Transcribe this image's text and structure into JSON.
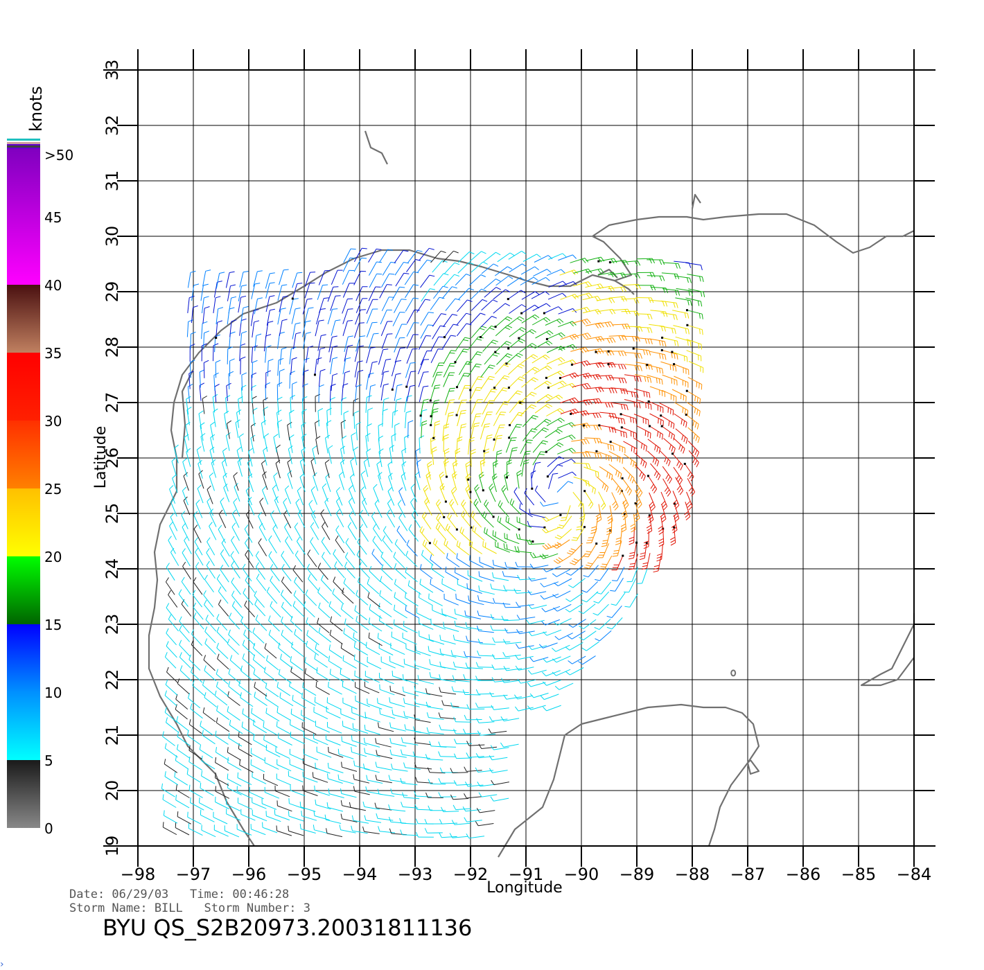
{
  "map": {
    "region": "Gulf of Mexico",
    "x_axis_label": "Longitude",
    "y_axis_label": "Latitude",
    "lon_range": [
      -98,
      -84
    ],
    "lat_range": [
      19,
      33
    ],
    "lon_ticks": [
      "−98",
      "−97",
      "−96",
      "−95",
      "−94",
      "−93",
      "−92",
      "−91",
      "−90",
      "−89",
      "−88",
      "−87",
      "−86",
      "−85",
      "−84"
    ],
    "lat_ticks": [
      "19",
      "20",
      "21",
      "22",
      "23",
      "24",
      "25",
      "26",
      "27",
      "28",
      "29",
      "30",
      "31",
      "32",
      "33"
    ],
    "grid": true,
    "coastline_color": "#707070"
  },
  "colorbar": {
    "unit": "knots",
    "top_label": ">50",
    "labels": [
      "45",
      "40",
      "35",
      "30",
      "25",
      "20",
      "15",
      "10",
      "5",
      "0"
    ],
    "bands": [
      {
        "from": 0,
        "to": 5,
        "colors": [
          "#888888",
          "#1a1a1a"
        ]
      },
      {
        "from": 5,
        "to": 10,
        "colors": [
          "#00ffff",
          "#0090ff"
        ]
      },
      {
        "from": 10,
        "to": 15,
        "colors": [
          "#0090ff",
          "#0000ff"
        ]
      },
      {
        "from": 15,
        "to": 20,
        "colors": [
          "#006400",
          "#00ff00"
        ]
      },
      {
        "from": 20,
        "to": 25,
        "colors": [
          "#ffff00",
          "#ffc000"
        ]
      },
      {
        "from": 25,
        "to": 30,
        "colors": [
          "#ff8000",
          "#ff3000"
        ]
      },
      {
        "from": 30,
        "to": 35,
        "colors": [
          "#ff2000",
          "#ff0000"
        ]
      },
      {
        "from": 35,
        "to": 40,
        "colors": [
          "#c08060",
          "#4a1010"
        ]
      },
      {
        "from": 40,
        "to": 50,
        "colors": [
          "#ff00ff",
          "#8000c0"
        ]
      },
      {
        "from": 50,
        "to": 52,
        "colors": [
          "#6000d0",
          "#6000d0"
        ]
      }
    ]
  },
  "footer": {
    "line1": "Date: 06/29/03   Time: 00:46:28",
    "line2": "Storm Name: BILL   Storm Number: 3",
    "title": "BYU QS_S2B20973.20031811136"
  },
  "storm": {
    "center_lon": -90.4,
    "center_lat": 25.3
  },
  "wind_colors": {
    "calm": "#202020",
    "light": "#00d8f0",
    "moderate": "#0080ff",
    "fresh": "#0010d0",
    "green": "#10b010",
    "yellow": "#f0e000",
    "orange": "#ff9000",
    "red": "#e01000"
  }
}
